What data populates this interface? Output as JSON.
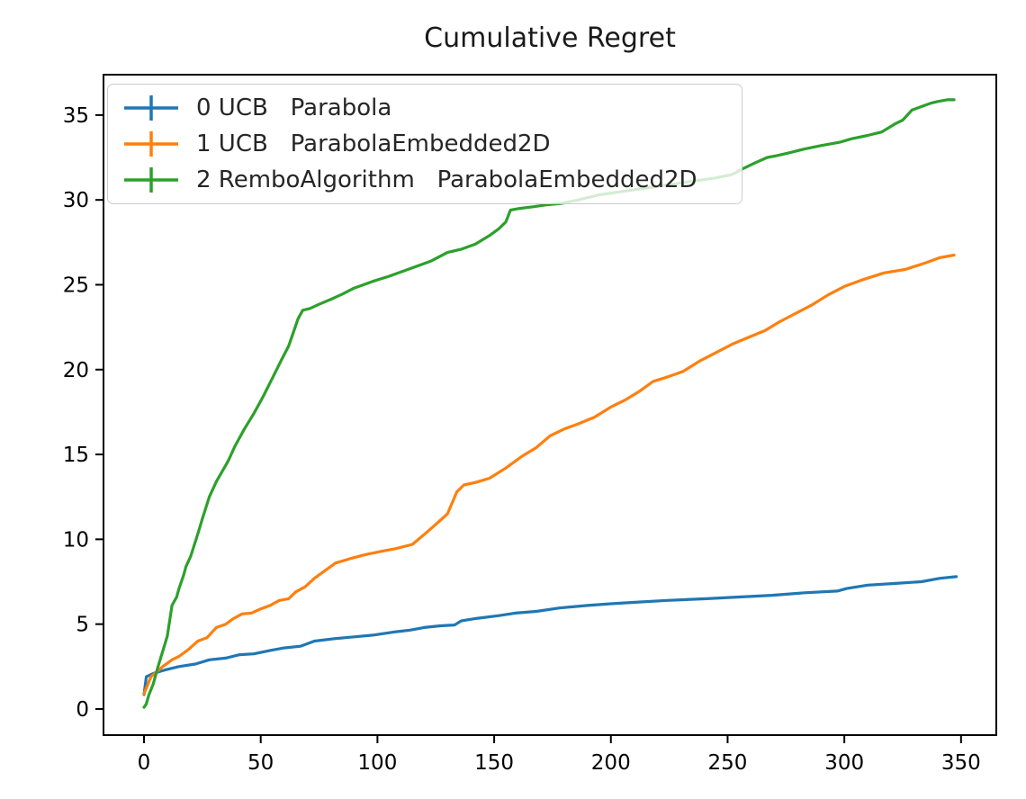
{
  "title": "Cumulative Regret",
  "chart_data": {
    "type": "line",
    "title": "Cumulative Regret",
    "xlabel": "",
    "ylabel": "",
    "xlim": [
      -17.35,
      365.1
    ],
    "ylim": [
      -1.54,
      37.38
    ],
    "x_ticks": [
      0,
      50,
      100,
      150,
      200,
      250,
      300,
      350
    ],
    "y_ticks": [
      0,
      5,
      10,
      15,
      20,
      25,
      30,
      35
    ],
    "grid": false,
    "legend_position": "upper left",
    "legend_marker": "errorbar",
    "axis_color": "#000000",
    "background_color": "#ffffff",
    "series": [
      {
        "name": "0 UCB   Parabola",
        "color": "#1f77b4",
        "points": [
          [
            0,
            0.85
          ],
          [
            1,
            1.9
          ],
          [
            4,
            2.1
          ],
          [
            9,
            2.3
          ],
          [
            15,
            2.5
          ],
          [
            22,
            2.65
          ],
          [
            28,
            2.9
          ],
          [
            35,
            3.0
          ],
          [
            41,
            3.2
          ],
          [
            47,
            3.25
          ],
          [
            54,
            3.45
          ],
          [
            60,
            3.6
          ],
          [
            67,
            3.7
          ],
          [
            73,
            4.0
          ],
          [
            82,
            4.15
          ],
          [
            90,
            4.25
          ],
          [
            98,
            4.35
          ],
          [
            108,
            4.55
          ],
          [
            114,
            4.65
          ],
          [
            120,
            4.8
          ],
          [
            127,
            4.9
          ],
          [
            133,
            4.95
          ],
          [
            136,
            5.2
          ],
          [
            143,
            5.35
          ],
          [
            152,
            5.5
          ],
          [
            159,
            5.65
          ],
          [
            168,
            5.75
          ],
          [
            178,
            5.95
          ],
          [
            190,
            6.1
          ],
          [
            200,
            6.2
          ],
          [
            212,
            6.3
          ],
          [
            224,
            6.4
          ],
          [
            241,
            6.5
          ],
          [
            255,
            6.6
          ],
          [
            269,
            6.7
          ],
          [
            283,
            6.85
          ],
          [
            297,
            6.95
          ],
          [
            301,
            7.1
          ],
          [
            310,
            7.3
          ],
          [
            322,
            7.4
          ],
          [
            333,
            7.5
          ],
          [
            341,
            7.7
          ],
          [
            348,
            7.8
          ]
        ]
      },
      {
        "name": "1 UCB   ParabolaEmbedded2D",
        "color": "#ff7f0e",
        "points": [
          [
            0,
            0.9
          ],
          [
            3,
            1.9
          ],
          [
            8,
            2.5
          ],
          [
            12,
            2.9
          ],
          [
            15,
            3.1
          ],
          [
            19,
            3.5
          ],
          [
            23,
            4.0
          ],
          [
            27,
            4.2
          ],
          [
            31,
            4.8
          ],
          [
            35,
            5.0
          ],
          [
            38,
            5.3
          ],
          [
            42,
            5.6
          ],
          [
            46,
            5.65
          ],
          [
            50,
            5.9
          ],
          [
            54,
            6.1
          ],
          [
            58,
            6.4
          ],
          [
            62,
            6.5
          ],
          [
            65,
            6.9
          ],
          [
            69,
            7.2
          ],
          [
            73,
            7.7
          ],
          [
            78,
            8.2
          ],
          [
            82,
            8.6
          ],
          [
            88,
            8.85
          ],
          [
            95,
            9.1
          ],
          [
            102,
            9.3
          ],
          [
            108,
            9.45
          ],
          [
            115,
            9.7
          ],
          [
            121,
            10.4
          ],
          [
            126,
            11.0
          ],
          [
            130,
            11.5
          ],
          [
            134,
            12.8
          ],
          [
            137,
            13.2
          ],
          [
            142,
            13.35
          ],
          [
            148,
            13.6
          ],
          [
            155,
            14.2
          ],
          [
            162,
            14.9
          ],
          [
            168,
            15.4
          ],
          [
            174,
            16.1
          ],
          [
            180,
            16.5
          ],
          [
            186,
            16.8
          ],
          [
            193,
            17.2
          ],
          [
            200,
            17.8
          ],
          [
            206,
            18.2
          ],
          [
            212,
            18.7
          ],
          [
            218,
            19.3
          ],
          [
            225,
            19.6
          ],
          [
            231,
            19.9
          ],
          [
            238,
            20.5
          ],
          [
            245,
            21.0
          ],
          [
            252,
            21.5
          ],
          [
            259,
            21.9
          ],
          [
            266,
            22.3
          ],
          [
            272,
            22.8
          ],
          [
            279,
            23.3
          ],
          [
            286,
            23.8
          ],
          [
            293,
            24.4
          ],
          [
            300,
            24.9
          ],
          [
            308,
            25.3
          ],
          [
            317,
            25.7
          ],
          [
            326,
            25.9
          ],
          [
            335,
            26.3
          ],
          [
            341,
            26.6
          ],
          [
            347,
            26.75
          ]
        ]
      },
      {
        "name": "2 RemboAlgorithm   ParabolaEmbedded2D",
        "color": "#2ca02c",
        "points": [
          [
            0,
            0.1
          ],
          [
            1,
            0.3
          ],
          [
            2,
            0.8
          ],
          [
            4,
            1.5
          ],
          [
            6,
            2.5
          ],
          [
            8,
            3.4
          ],
          [
            10,
            4.3
          ],
          [
            11,
            5.2
          ],
          [
            12,
            6.1
          ],
          [
            14,
            6.6
          ],
          [
            15,
            7.1
          ],
          [
            17,
            7.9
          ],
          [
            18,
            8.4
          ],
          [
            20,
            9.0
          ],
          [
            23,
            10.3
          ],
          [
            25,
            11.2
          ],
          [
            28,
            12.5
          ],
          [
            31,
            13.4
          ],
          [
            36,
            14.6
          ],
          [
            39,
            15.5
          ],
          [
            43,
            16.5
          ],
          [
            47,
            17.4
          ],
          [
            51,
            18.4
          ],
          [
            55,
            19.5
          ],
          [
            59,
            20.6
          ],
          [
            62,
            21.4
          ],
          [
            64,
            22.2
          ],
          [
            66,
            23.0
          ],
          [
            68,
            23.5
          ],
          [
            71,
            23.6
          ],
          [
            75,
            23.85
          ],
          [
            81,
            24.2
          ],
          [
            85,
            24.45
          ],
          [
            90,
            24.8
          ],
          [
            98,
            25.2
          ],
          [
            105,
            25.5
          ],
          [
            111,
            25.8
          ],
          [
            117,
            26.1
          ],
          [
            123,
            26.4
          ],
          [
            130,
            26.9
          ],
          [
            136,
            27.1
          ],
          [
            142,
            27.4
          ],
          [
            148,
            27.9
          ],
          [
            152,
            28.3
          ],
          [
            155,
            28.7
          ],
          [
            157,
            29.4
          ],
          [
            161,
            29.5
          ],
          [
            167,
            29.6
          ],
          [
            172,
            29.7
          ],
          [
            179,
            29.8
          ],
          [
            186,
            30.0
          ],
          [
            195,
            30.3
          ],
          [
            205,
            30.5
          ],
          [
            215,
            30.7
          ],
          [
            225,
            30.9
          ],
          [
            235,
            31.1
          ],
          [
            245,
            31.3
          ],
          [
            252,
            31.5
          ],
          [
            256,
            31.8
          ],
          [
            262,
            32.2
          ],
          [
            267,
            32.5
          ],
          [
            271,
            32.6
          ],
          [
            277,
            32.8
          ],
          [
            283,
            33.0
          ],
          [
            290,
            33.2
          ],
          [
            298,
            33.4
          ],
          [
            303,
            33.6
          ],
          [
            310,
            33.8
          ],
          [
            316,
            34.0
          ],
          [
            322,
            34.5
          ],
          [
            325,
            34.7
          ],
          [
            327,
            35.0
          ],
          [
            329,
            35.3
          ],
          [
            333,
            35.5
          ],
          [
            337,
            35.7
          ],
          [
            340,
            35.8
          ],
          [
            344,
            35.9
          ],
          [
            347,
            35.9
          ]
        ]
      }
    ]
  }
}
